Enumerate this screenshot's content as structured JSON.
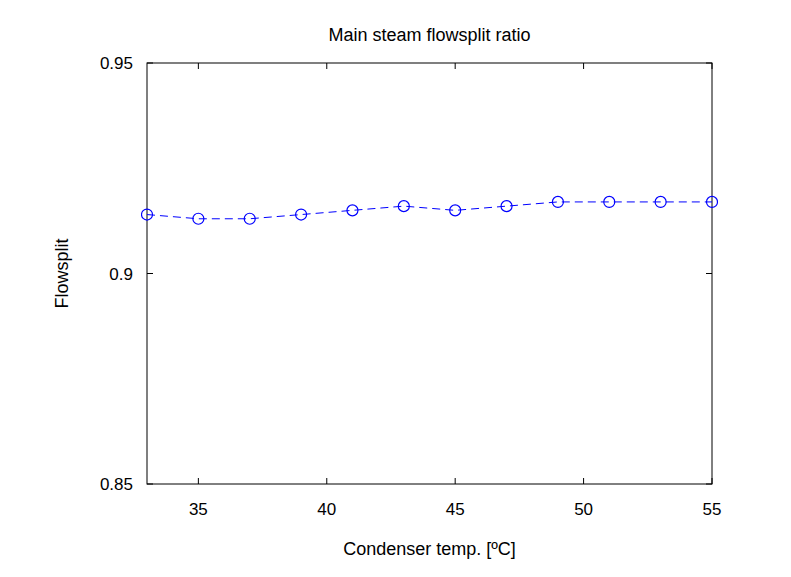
{
  "chart_data": {
    "type": "line",
    "title": "Main steam flowsplit ratio",
    "x_label": "Condenser temp. [ºC]",
    "y_label": "Flowsplit",
    "series": [
      {
        "name": null,
        "color": "#0000ff",
        "marker": "circle",
        "line_style": "dashed",
        "x": [
          33,
          35,
          37,
          39,
          41,
          43,
          45,
          47,
          49,
          51,
          53,
          55
        ],
        "values": [
          0.914,
          0.913,
          0.913,
          0.914,
          0.915,
          0.916,
          0.915,
          0.916,
          0.917,
          0.917,
          0.917,
          0.917
        ]
      }
    ],
    "xlim": [
      33,
      55
    ],
    "xticks": [
      35,
      40,
      45,
      50,
      55
    ],
    "ylim": [
      0.85,
      0.95
    ],
    "yticks": [
      0.85,
      0.9,
      0.95
    ],
    "grid": false
  }
}
